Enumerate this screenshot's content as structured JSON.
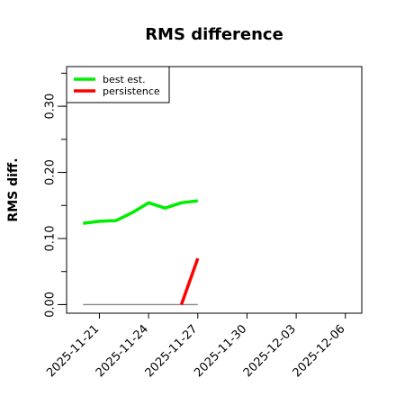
{
  "chart_data": {
    "type": "line",
    "title": "RMS difference",
    "xlabel": "",
    "ylabel": "RMS diff.",
    "x_range": [
      "2025-11-19",
      "2025-12-07"
    ],
    "ylim": [
      -0.013,
      0.36
    ],
    "x_ticks": [
      "2025-11-21",
      "2025-11-24",
      "2025-11-27",
      "2025-11-30",
      "2025-12-03",
      "2025-12-06"
    ],
    "y_ticks": [
      0.0,
      0.1,
      0.2,
      0.3
    ],
    "y_tick_labels": [
      "0.00",
      "0.10",
      "0.20",
      "0.30"
    ],
    "y_minor_step": 0.05,
    "grid": false,
    "legend_position": "top-left",
    "series": [
      {
        "name": "best est.",
        "color": "#00ee00",
        "x": [
          "2025-11-20",
          "2025-11-21",
          "2025-11-22",
          "2025-11-23",
          "2025-11-24",
          "2025-11-25",
          "2025-11-26",
          "2025-11-27"
        ],
        "y": [
          0.123,
          0.126,
          0.127,
          0.139,
          0.154,
          0.146,
          0.154,
          0.157
        ]
      },
      {
        "name": "persistence",
        "color": "#ff0000",
        "x": [
          "2025-11-26",
          "2025-11-27"
        ],
        "y": [
          0.0,
          0.07
        ]
      }
    ],
    "reference_line": {
      "color": "#888888",
      "x": [
        "2025-11-20",
        "2025-11-27"
      ],
      "y": [
        0.0,
        0.0
      ]
    }
  }
}
